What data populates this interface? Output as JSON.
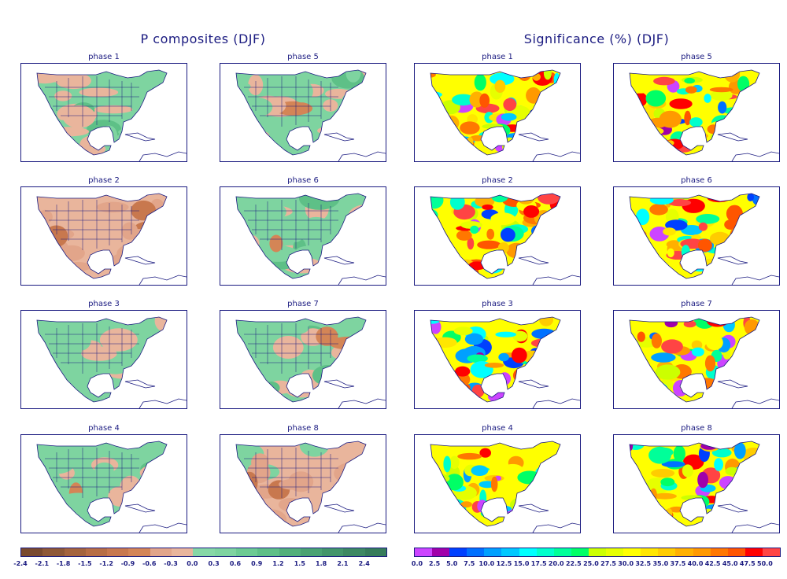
{
  "chart_data": [
    {
      "type": "heatmap",
      "title": "P composites (DJF)",
      "season": "DJF",
      "variable": "P",
      "panels": [
        "phase 1",
        "phase 5",
        "phase 2",
        "phase 6",
        "phase 3",
        "phase 7",
        "phase 4",
        "phase 8"
      ],
      "colorbar": {
        "ticks": [
          "-2.4",
          "-2.1",
          "-1.8",
          "-1.5",
          "-1.2",
          "-0.9",
          "-0.6",
          "-0.3",
          "0.0",
          "0.3",
          "0.6",
          "0.9",
          "1.2",
          "1.5",
          "1.8",
          "2.1",
          "2.4"
        ],
        "range": [
          -2.4,
          2.4
        ],
        "colors": [
          "#7a4a2e",
          "#8f5836",
          "#a5643d",
          "#b86e45",
          "#c8784e",
          "#d48556",
          "#e2a58a",
          "#e9b59c",
          "#86d8a6",
          "#7ed4a0",
          "#6ccb93",
          "#5ec087",
          "#52b07a",
          "#4aa372",
          "#43966a",
          "#3d8962",
          "#367c5a"
        ]
      },
      "panel_tone": {
        "phase 1": "mixed",
        "phase 2": "mostly-negative",
        "phase 3": "mixed",
        "phase 4": "mixed",
        "phase 5": "mixed",
        "phase 6": "mixed",
        "phase 7": "mixed",
        "phase 8": "mostly-negative"
      }
    },
    {
      "type": "heatmap",
      "title": "Significance (%) (DJF)",
      "season": "DJF",
      "variable": "Significance (%)",
      "panels": [
        "phase 1",
        "phase 5",
        "phase 2",
        "phase 6",
        "phase 3",
        "phase 7",
        "phase 4",
        "phase 8"
      ],
      "colorbar": {
        "ticks": [
          "0.0",
          "2.5",
          "5.0",
          "7.5",
          "10.0",
          "12.5",
          "15.0",
          "17.5",
          "20.0",
          "22.5",
          "25.0",
          "27.5",
          "30.0",
          "32.5",
          "35.0",
          "37.5",
          "40.0",
          "42.5",
          "45.0",
          "47.5",
          "50.0"
        ],
        "range": [
          0,
          50
        ],
        "colors": [
          "#cc44ff",
          "#a000aa",
          "#0040ff",
          "#0070ff",
          "#00a0ff",
          "#00c8ff",
          "#00ffff",
          "#00ffcc",
          "#00ff99",
          "#00ff66",
          "#ccff00",
          "#e6ff00",
          "#ffff00",
          "#ffe600",
          "#ffcc00",
          "#ffb000",
          "#ff9900",
          "#ff7700",
          "#ff5500",
          "#ff0000",
          "#ff4444"
        ]
      }
    }
  ]
}
